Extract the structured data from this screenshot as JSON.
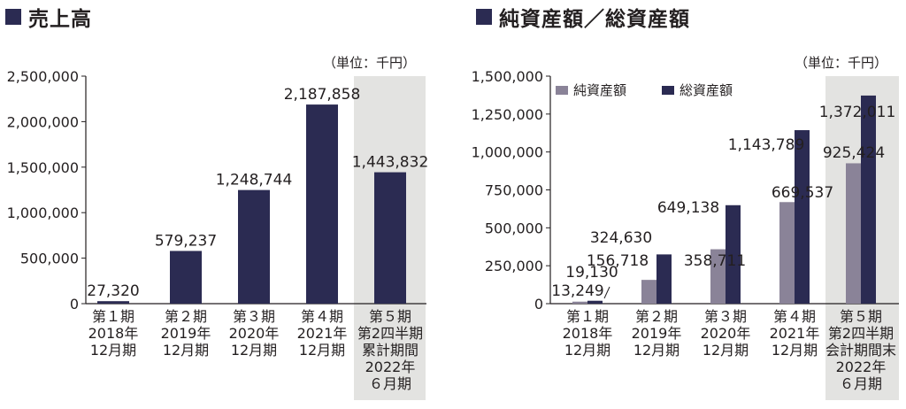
{
  "chart_data": [
    {
      "type": "bar",
      "title": "売上高",
      "unit_label": "（単位：千円）",
      "categories": [
        [
          "第１期",
          "2018年",
          "12月期"
        ],
        [
          "第２期",
          "2019年",
          "12月期"
        ],
        [
          "第３期",
          "2020年",
          "12月期"
        ],
        [
          "第４期",
          "2021年",
          "12月期"
        ],
        [
          "第５期",
          "第2四半期",
          "累計期間",
          "2022年",
          "６月期"
        ]
      ],
      "values": [
        27320,
        579237,
        1248744,
        2187858,
        1443832
      ],
      "value_labels": [
        "27,320",
        "579,237",
        "1,248,744",
        "2,187,858",
        "1,443,832"
      ],
      "ylim": [
        0,
        2500000
      ],
      "yticks": [
        0,
        500000,
        1000000,
        1500000,
        2000000,
        2500000
      ],
      "ytick_labels": [
        "0",
        "500,000",
        "1,000,000",
        "1,500,000",
        "2,000,000",
        "2,500,000"
      ],
      "highlight_index": 4,
      "colors": {
        "bar": "#2b2b52",
        "highlight_bg": "#e3e3e1",
        "axis": "#231f20"
      }
    },
    {
      "type": "bar",
      "title": "純資産額／総資産額",
      "unit_label": "（単位：千円）",
      "categories": [
        [
          "第１期",
          "2018年",
          "12月期"
        ],
        [
          "第２期",
          "2019年",
          "12月期"
        ],
        [
          "第３期",
          "2020年",
          "12月期"
        ],
        [
          "第４期",
          "2021年",
          "12月期"
        ],
        [
          "第５期",
          "第2四半期",
          "会計期間末",
          "2022年",
          "６月期"
        ]
      ],
      "series": [
        {
          "name": "純資産額",
          "values": [
            13249,
            156718,
            358711,
            669537,
            925424
          ],
          "value_labels": [
            "13,249",
            "156,718",
            "358,711",
            "669,537",
            "925,424"
          ],
          "color": "#8a8398"
        },
        {
          "name": "総資産額",
          "values": [
            19130,
            324630,
            649138,
            1143789,
            1372011
          ],
          "value_labels": [
            "19,130",
            "324,630",
            "649,138",
            "1,143,789",
            "1,372,011"
          ],
          "color": "#2b2b52"
        }
      ],
      "ylim": [
        0,
        1500000
      ],
      "yticks": [
        0,
        250000,
        500000,
        750000,
        1000000,
        1250000,
        1500000
      ],
      "ytick_labels": [
        "0",
        "250,000",
        "500,000",
        "750,000",
        "1,000,000",
        "1,250,000",
        "1,500,000"
      ],
      "legend_position": "top-left",
      "highlight_index": 4,
      "colors": {
        "highlight_bg": "#e3e3e1",
        "axis": "#231f20"
      }
    }
  ]
}
